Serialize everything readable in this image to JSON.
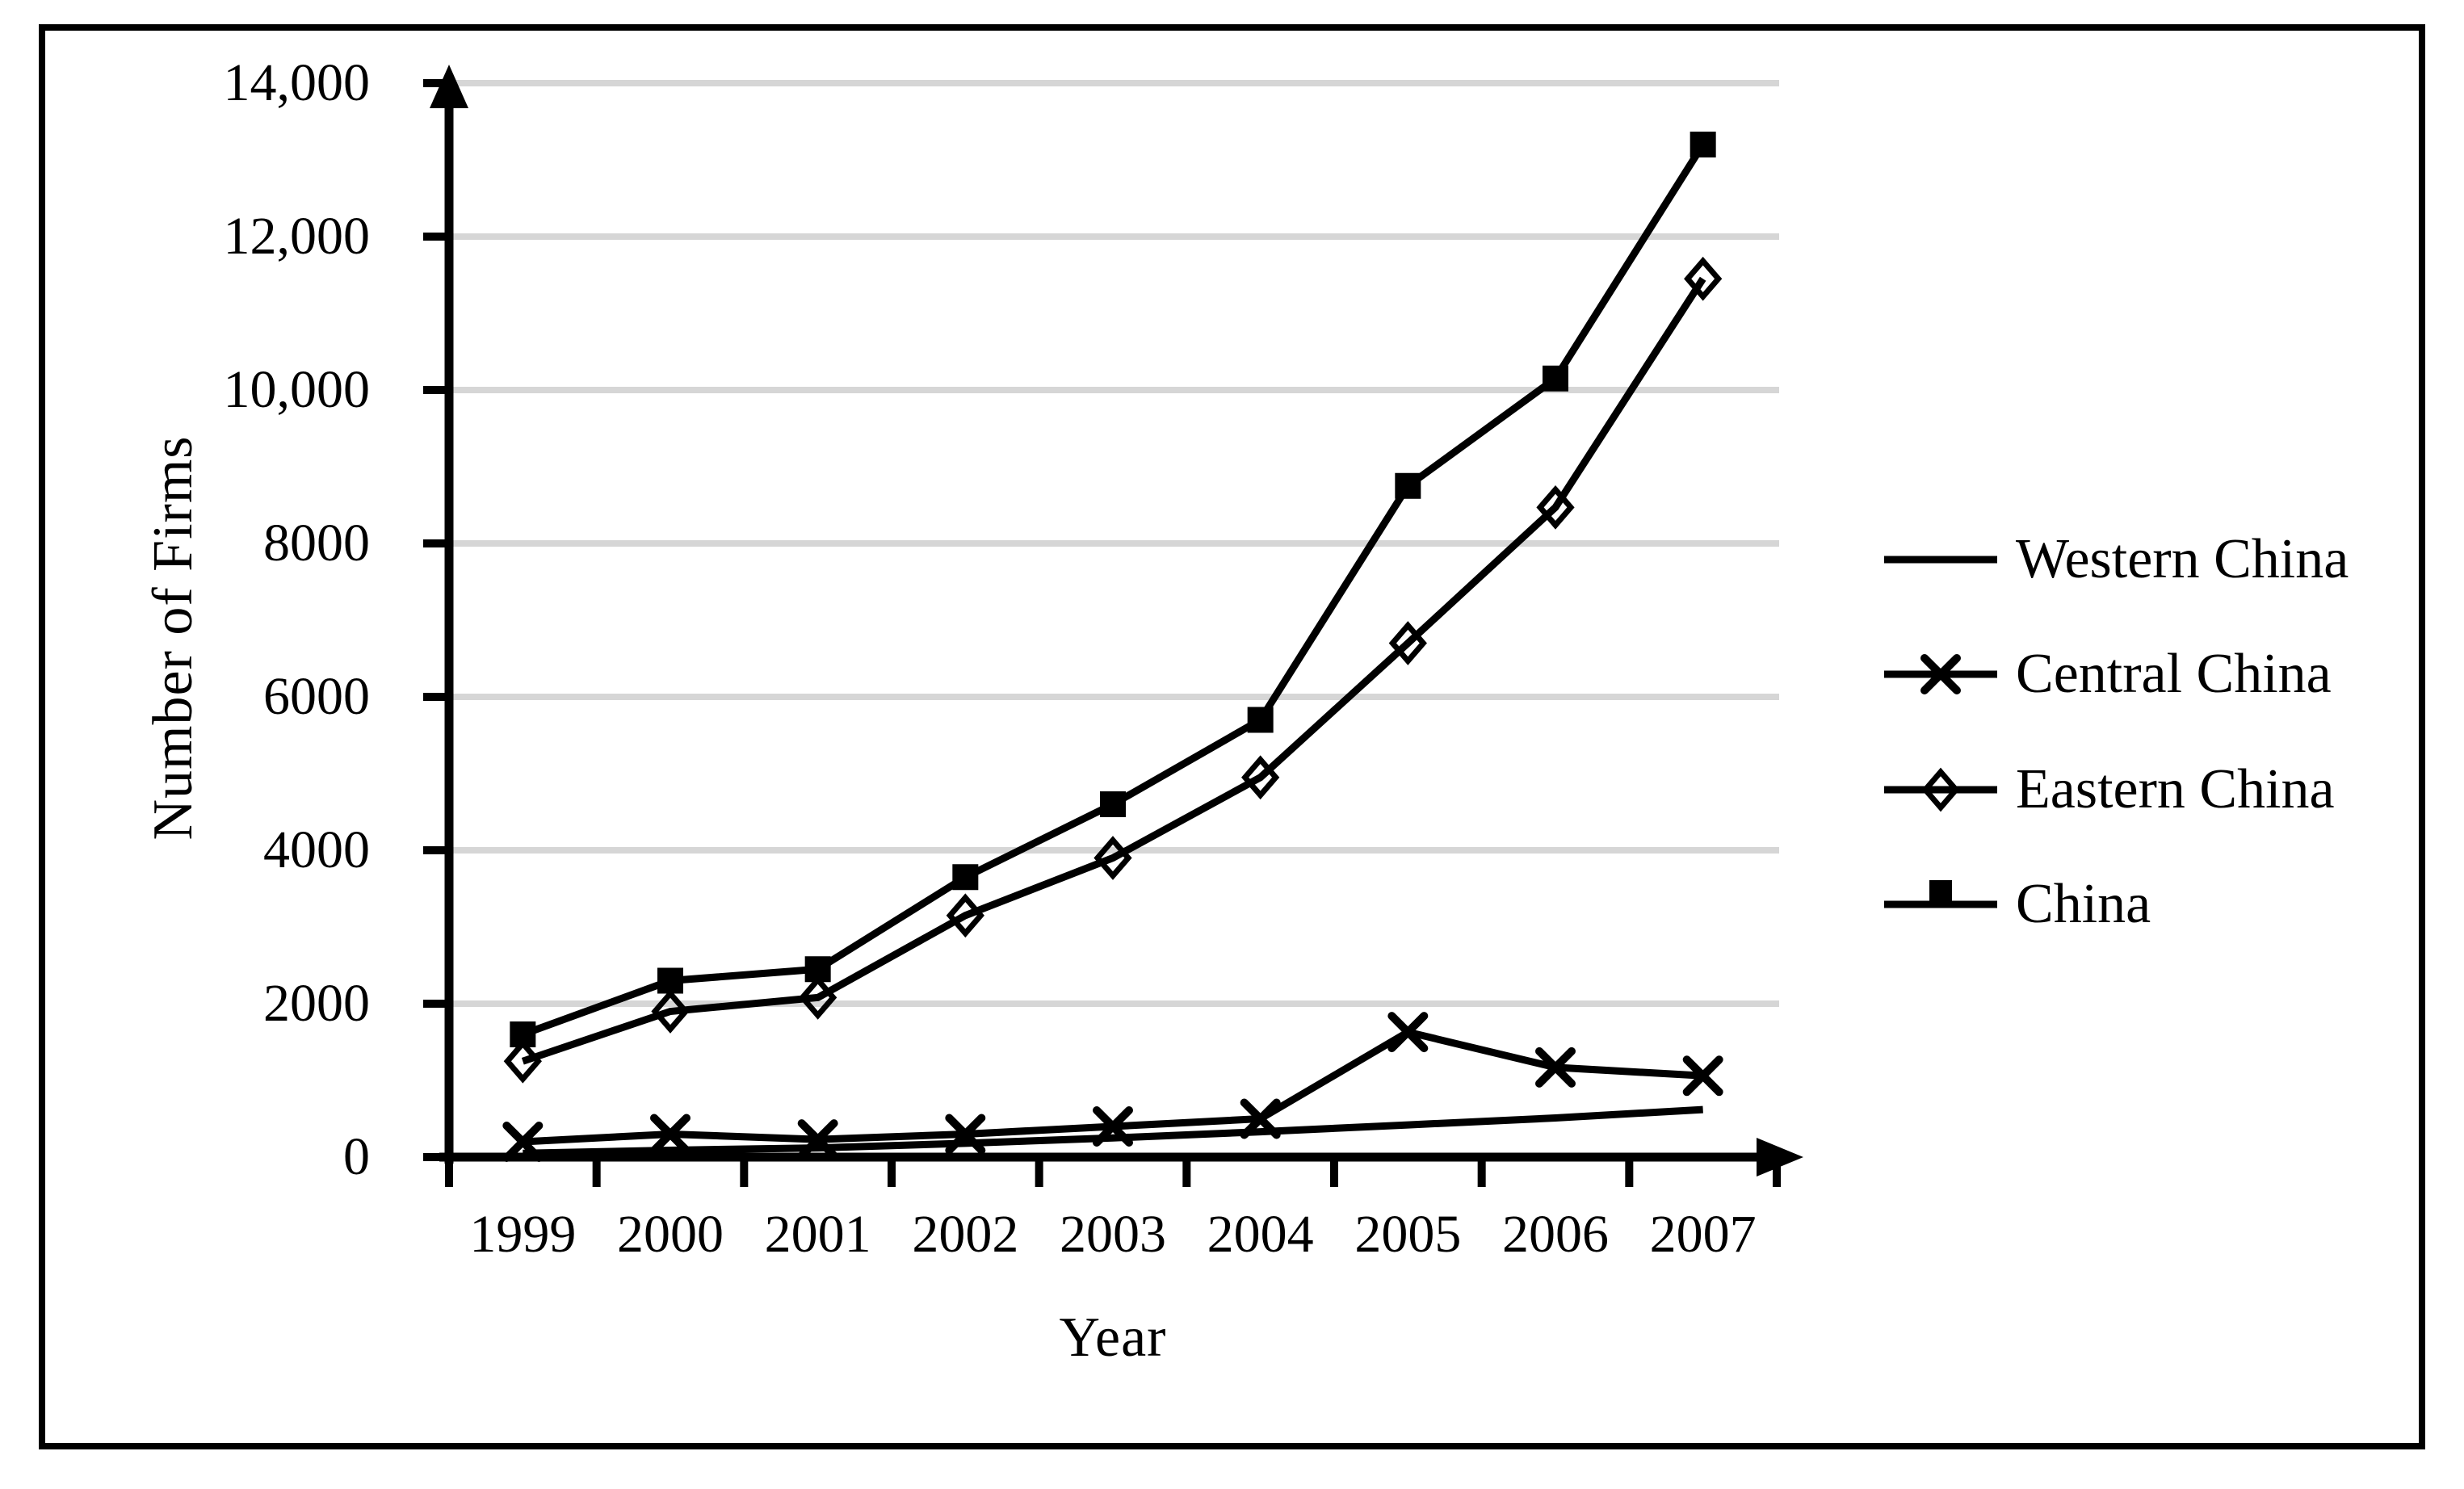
{
  "figure": {
    "colors": {
      "line": "#000000",
      "grid": "#d6d6d6",
      "axis": "#000000",
      "text": "#000000",
      "background": "#ffffff",
      "frame": "#000000"
    }
  },
  "chart_data": {
    "type": "line",
    "title": "",
    "xlabel": "Year",
    "ylabel": "Number of Firms",
    "categories": [
      "1999",
      "2000",
      "2001",
      "2002",
      "2003",
      "2004",
      "2005",
      "2006",
      "2007"
    ],
    "ylim": [
      0,
      14000
    ],
    "y_ticks": [
      0,
      2000,
      4000,
      6000,
      8000,
      10000,
      12000,
      14000
    ],
    "y_tick_labels": [
      "0",
      "2000",
      "4000",
      "6000",
      "8000",
      "10,000",
      "12,000",
      "14,000"
    ],
    "grid": "horizontal",
    "legend_position": "right",
    "series": [
      {
        "name": "Western China",
        "marker": "none",
        "values": [
          50,
          90,
          120,
          180,
          250,
          330,
          420,
          510,
          620
        ]
      },
      {
        "name": "Central China",
        "marker": "x",
        "values": [
          200,
          300,
          230,
          300,
          400,
          500,
          1630,
          1170,
          1060
        ]
      },
      {
        "name": "Eastern China",
        "marker": "diamond-hollow",
        "values": [
          1250,
          1900,
          2080,
          3150,
          3900,
          4950,
          6700,
          8470,
          11450
        ]
      },
      {
        "name": "China",
        "marker": "square-filled",
        "values": [
          1600,
          2300,
          2450,
          3650,
          4600,
          5700,
          8750,
          10150,
          13200
        ]
      }
    ]
  }
}
